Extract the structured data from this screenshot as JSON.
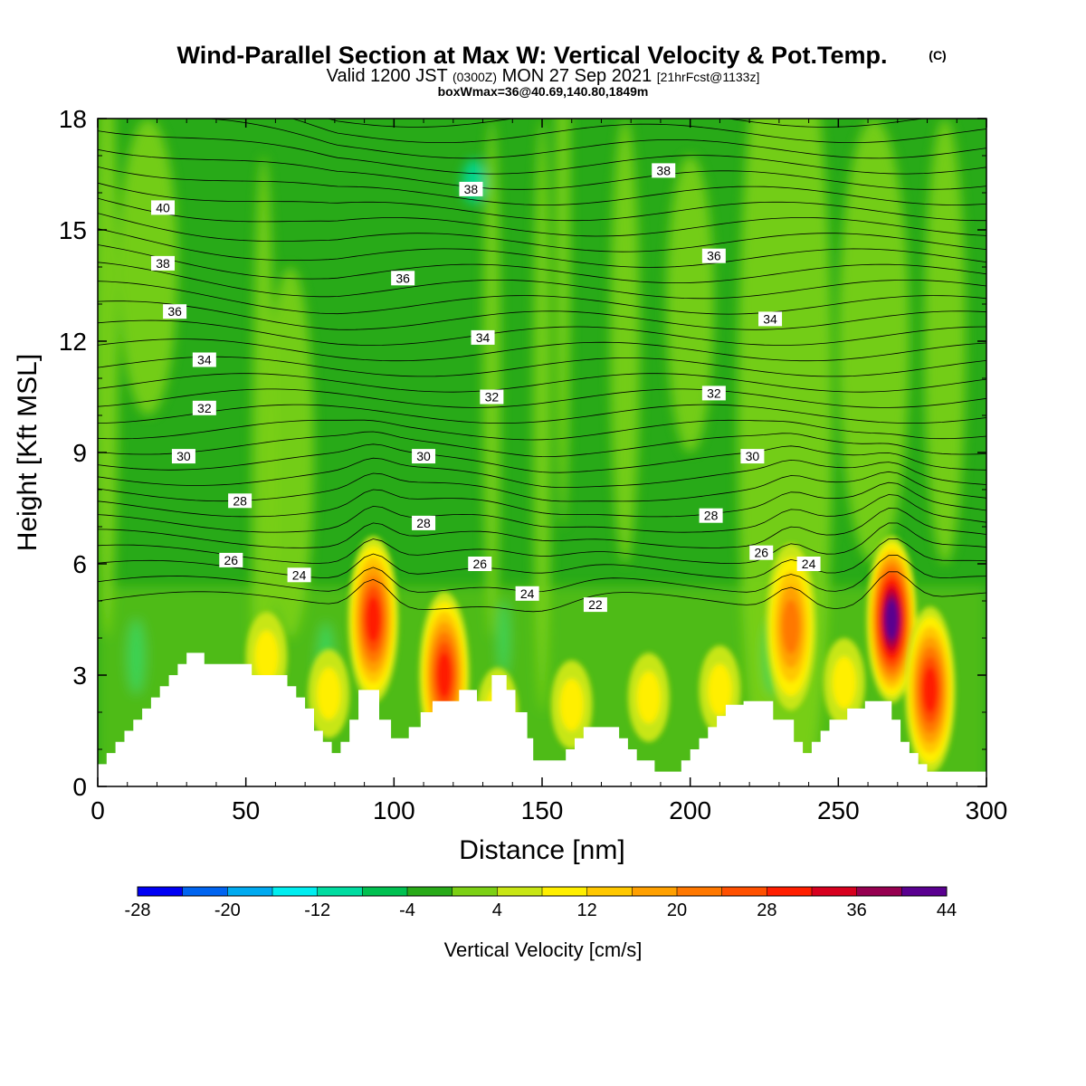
{
  "title_main": "Wind-Parallel Section at Max W: Vertical Velocity & Pot.Temp.",
  "title_copyright": "(C)",
  "subtitle": {
    "valid": "Valid 1200 JST",
    "zulu": "(0300Z)",
    "date": "MON 27 Sep 2021",
    "fcst": "[21hrFcst@1133z]"
  },
  "box_info": "boxWmax=36@40.69,140.80,1849m",
  "chart_data": {
    "type": "heatmap",
    "xlabel": "Distance [nm]",
    "ylabel": "Height [Kft MSL]",
    "xlim": [
      0,
      300
    ],
    "ylim": [
      0,
      18
    ],
    "xticks": [
      0,
      50,
      100,
      150,
      200,
      250,
      300
    ],
    "yticks": [
      0,
      3,
      6,
      9,
      12,
      15,
      18
    ],
    "colorbar": {
      "label": "Vertical Velocity [cm/s]",
      "tick_labels": [
        "-28",
        "-20",
        "-12",
        "-4",
        "4",
        "12",
        "20",
        "28",
        "36",
        "44"
      ],
      "levels_start": -28,
      "level_step": 4,
      "colors": [
        "#0000f5",
        "#0064f0",
        "#00aaf0",
        "#00eef0",
        "#00dca0",
        "#00c050",
        "#28aa18",
        "#7cd014",
        "#c8e614",
        "#ffef00",
        "#ffc800",
        "#ffa000",
        "#ff7800",
        "#ff5000",
        "#ff1e00",
        "#d7001e",
        "#960050",
        "#5a0090"
      ]
    },
    "theta_contour_labels": [
      {
        "value": "40",
        "x": 22,
        "y": 15.6
      },
      {
        "value": "38",
        "x": 22,
        "y": 14.1
      },
      {
        "value": "36",
        "x": 26,
        "y": 12.8
      },
      {
        "value": "34",
        "x": 36,
        "y": 11.5
      },
      {
        "value": "32",
        "x": 36,
        "y": 10.2
      },
      {
        "value": "30",
        "x": 29,
        "y": 8.9
      },
      {
        "value": "28",
        "x": 48,
        "y": 7.7
      },
      {
        "value": "26",
        "x": 45,
        "y": 6.1
      },
      {
        "value": "24",
        "x": 68,
        "y": 5.7
      },
      {
        "value": "38",
        "x": 126,
        "y": 16.1
      },
      {
        "value": "36",
        "x": 103,
        "y": 13.7
      },
      {
        "value": "34",
        "x": 130,
        "y": 12.1
      },
      {
        "value": "32",
        "x": 133,
        "y": 10.5
      },
      {
        "value": "30",
        "x": 110,
        "y": 8.9
      },
      {
        "value": "28",
        "x": 110,
        "y": 7.1
      },
      {
        "value": "26",
        "x": 129,
        "y": 6.0
      },
      {
        "value": "24",
        "x": 145,
        "y": 5.2
      },
      {
        "value": "22",
        "x": 168,
        "y": 4.9
      },
      {
        "value": "38",
        "x": 191,
        "y": 16.6
      },
      {
        "value": "36",
        "x": 208,
        "y": 14.3
      },
      {
        "value": "34",
        "x": 227,
        "y": 12.6
      },
      {
        "value": "32",
        "x": 208,
        "y": 10.6
      },
      {
        "value": "30",
        "x": 221,
        "y": 8.9
      },
      {
        "value": "28",
        "x": 207,
        "y": 7.3
      },
      {
        "value": "26",
        "x": 224,
        "y": 6.3
      },
      {
        "value": "24",
        "x": 240,
        "y": 6.0
      }
    ],
    "terrain": [
      [
        0,
        0.6
      ],
      [
        3,
        0.6
      ],
      [
        3,
        0.9
      ],
      [
        6,
        0.9
      ],
      [
        6,
        1.2
      ],
      [
        9,
        1.2
      ],
      [
        9,
        1.5
      ],
      [
        12,
        1.5
      ],
      [
        12,
        1.8
      ],
      [
        15,
        1.8
      ],
      [
        15,
        2.1
      ],
      [
        18,
        2.1
      ],
      [
        18,
        2.4
      ],
      [
        21,
        2.4
      ],
      [
        21,
        2.7
      ],
      [
        24,
        2.7
      ],
      [
        24,
        3.0
      ],
      [
        27,
        3.0
      ],
      [
        27,
        3.3
      ],
      [
        30,
        3.3
      ],
      [
        30,
        3.6
      ],
      [
        36,
        3.6
      ],
      [
        36,
        3.3
      ],
      [
        52,
        3.3
      ],
      [
        52,
        3.0
      ],
      [
        64,
        3.0
      ],
      [
        64,
        2.7
      ],
      [
        67,
        2.7
      ],
      [
        67,
        2.4
      ],
      [
        70,
        2.4
      ],
      [
        70,
        2.1
      ],
      [
        73,
        2.1
      ],
      [
        73,
        1.5
      ],
      [
        76,
        1.5
      ],
      [
        76,
        1.2
      ],
      [
        79,
        1.2
      ],
      [
        79,
        0.9
      ],
      [
        82,
        0.9
      ],
      [
        82,
        1.2
      ],
      [
        85,
        1.2
      ],
      [
        85,
        1.8
      ],
      [
        88,
        1.8
      ],
      [
        88,
        2.6
      ],
      [
        95,
        2.6
      ],
      [
        95,
        1.8
      ],
      [
        99,
        1.8
      ],
      [
        99,
        1.3
      ],
      [
        105,
        1.3
      ],
      [
        105,
        1.6
      ],
      [
        109,
        1.6
      ],
      [
        109,
        2.0
      ],
      [
        113,
        2.0
      ],
      [
        113,
        2.3
      ],
      [
        122,
        2.3
      ],
      [
        122,
        2.6
      ],
      [
        128,
        2.6
      ],
      [
        128,
        2.3
      ],
      [
        133,
        2.3
      ],
      [
        133,
        3.0
      ],
      [
        138,
        3.0
      ],
      [
        138,
        2.6
      ],
      [
        141,
        2.6
      ],
      [
        141,
        2.0
      ],
      [
        145,
        2.0
      ],
      [
        145,
        1.3
      ],
      [
        147,
        1.3
      ],
      [
        147,
        0.7
      ],
      [
        158,
        0.7
      ],
      [
        158,
        1.0
      ],
      [
        161,
        1.0
      ],
      [
        161,
        1.3
      ],
      [
        164,
        1.3
      ],
      [
        164,
        1.6
      ],
      [
        176,
        1.6
      ],
      [
        176,
        1.3
      ],
      [
        179,
        1.3
      ],
      [
        179,
        1.0
      ],
      [
        182,
        1.0
      ],
      [
        182,
        0.7
      ],
      [
        188,
        0.7
      ],
      [
        188,
        0.4
      ],
      [
        197,
        0.4
      ],
      [
        197,
        0.7
      ],
      [
        200,
        0.7
      ],
      [
        200,
        1.0
      ],
      [
        203,
        1.0
      ],
      [
        203,
        1.3
      ],
      [
        206,
        1.3
      ],
      [
        206,
        1.6
      ],
      [
        209,
        1.6
      ],
      [
        209,
        1.9
      ],
      [
        212,
        1.9
      ],
      [
        212,
        2.2
      ],
      [
        218,
        2.2
      ],
      [
        218,
        2.3
      ],
      [
        228,
        2.3
      ],
      [
        228,
        1.8
      ],
      [
        235,
        1.8
      ],
      [
        235,
        1.2
      ],
      [
        238,
        1.2
      ],
      [
        238,
        0.9
      ],
      [
        241,
        0.9
      ],
      [
        241,
        1.2
      ],
      [
        244,
        1.2
      ],
      [
        244,
        1.5
      ],
      [
        247,
        1.5
      ],
      [
        247,
        1.8
      ],
      [
        253,
        1.8
      ],
      [
        253,
        2.1
      ],
      [
        259,
        2.1
      ],
      [
        259,
        2.3
      ],
      [
        268,
        2.3
      ],
      [
        268,
        1.8
      ],
      [
        271,
        1.8
      ],
      [
        271,
        1.2
      ],
      [
        274,
        1.2
      ],
      [
        274,
        0.9
      ],
      [
        277,
        0.9
      ],
      [
        277,
        0.6
      ],
      [
        280,
        0.6
      ],
      [
        280,
        0.4
      ],
      [
        300,
        0.4
      ]
    ],
    "updraft_cores": [
      {
        "x": 93,
        "y": 4.5,
        "peak_cm_s": 28
      },
      {
        "x": 117,
        "y": 3.0,
        "peak_cm_s": 28
      },
      {
        "x": 234,
        "y": 4.3,
        "peak_cm_s": 20
      },
      {
        "x": 268,
        "y": 4.5,
        "peak_cm_s": 40
      },
      {
        "x": 281,
        "y": 2.6,
        "peak_cm_s": 28
      }
    ]
  }
}
